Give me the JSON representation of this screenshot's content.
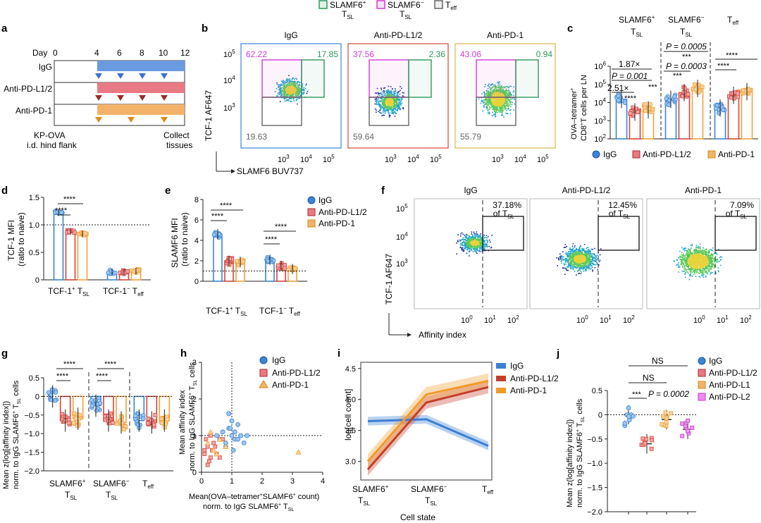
{
  "legend_top": {
    "items": [
      {
        "label": "SLAMF6",
        "sup": "+",
        "sub": "SL",
        "color": "#2e9a5e"
      },
      {
        "label": "SLAMF6",
        "sup": "−",
        "sub": "SL",
        "color": "#d23ad6"
      },
      {
        "label": "T",
        "sub": "eff",
        "color": "#666666"
      }
    ]
  },
  "panel_letters": {
    "a": "a",
    "b": "b",
    "c": "c",
    "d": "d",
    "e": "e",
    "f": "f",
    "g": "g",
    "h": "h",
    "i": "i",
    "j": "j"
  },
  "treatments": {
    "igg": "IgG",
    "pdl12": "Anti-PD-L1/2",
    "pd1": "Anti-PD-1",
    "pdl1": "Anti-PD-L1",
    "pdl2": "Anti-PD-L2"
  },
  "colors": {
    "igg": "#3a86d4",
    "pdl12": "#d4453a",
    "pd1": "#f0a23a",
    "pdl2": "#d94fd9",
    "green": "#2e9a5e",
    "magenta": "#d23ad6",
    "gray": "#666666"
  },
  "panel_a": {
    "day_label": "Day",
    "days": [
      "0",
      "4",
      "6",
      "8",
      "10",
      "12"
    ],
    "rows": [
      "IgG",
      "Anti-PD-L1/2",
      "Anti-PD-1"
    ],
    "start_text_1": "KP-OVA",
    "start_text_2": "i.d. hind flank",
    "end_text_1": "Collect",
    "end_text_2": "tissues"
  },
  "panel_b": {
    "ylabel": "TCF-1 AF647",
    "xlabel": "SLAMF6 BUV737",
    "plots": [
      {
        "title": "IgG",
        "magenta": "62.22",
        "green": "17.85",
        "gray": "19.63",
        "frame": "#3a86d4"
      },
      {
        "title": "Anti-PD-L1/2",
        "magenta": "37.56",
        "green": "2.36",
        "gray": "59.64",
        "frame": "#d4453a"
      },
      {
        "title": "Anti-PD-1",
        "magenta": "43.06",
        "green": "0.94",
        "gray": "55.79",
        "frame": "#d9b74a"
      }
    ],
    "y_ticks": [
      "10",
      "10",
      "10"
    ],
    "x_ticks": [
      "10",
      "10",
      "10"
    ]
  },
  "panel_c": {
    "ylabel_1": "OVA–tetramer",
    "ylabel_2": "CD8",
    "ylabel_3": "T cells per LN",
    "col_titles": [
      "SLAMF6",
      "SLAMF6",
      "T"
    ],
    "y_ticks": [
      "10",
      "10",
      "10",
      "10",
      "10"
    ],
    "annotations": {
      "fc1": "1.87×",
      "p1": "P = 0.001",
      "fc2": "2.51×",
      "p2": "P = 0.0005",
      "p3": "P = 0.0003",
      "stars3": "***",
      "stars4": "****"
    },
    "chart_data": {
      "type": "bar",
      "categories": [
        "SLAMF6+ TSL",
        "SLAMF6− TSL",
        "Teff"
      ],
      "series": [
        {
          "name": "IgG",
          "values": [
            15000,
            15000,
            5000
          ]
        },
        {
          "name": "Anti-PD-L1/2",
          "values": [
            3000,
            35000,
            25000
          ]
        },
        {
          "name": "Anti-PD-1",
          "values": [
            4000,
            60000,
            40000
          ]
        }
      ],
      "ylim": [
        100,
        1000000
      ],
      "yscale": "log"
    }
  },
  "panel_d": {
    "ylabel_1": "TCF-1 MFI",
    "ylabel_2": "(ratio to naive)",
    "x_labels": [
      "TCF-1",
      "TCF-1"
    ],
    "y_ticks": [
      "0",
      "0.5",
      "1.0",
      "1.5"
    ],
    "stars": "****",
    "chart_data": {
      "type": "bar",
      "categories": [
        "TCF-1+ TSL",
        "TCF-1− Teff"
      ],
      "series": [
        {
          "name": "IgG",
          "values": [
            1.22,
            0.14
          ]
        },
        {
          "name": "Anti-PD-L1/2",
          "values": [
            0.88,
            0.14
          ]
        },
        {
          "name": "Anti-PD-1",
          "values": [
            0.84,
            0.16
          ]
        }
      ],
      "ylim": [
        0,
        1.5
      ]
    }
  },
  "panel_e": {
    "ylabel_1": "SLAMF6 MFI",
    "ylabel_2": "(ratio to naive)",
    "x_labels": [
      "TCF-1",
      "TCF-1"
    ],
    "y_ticks": [
      "0",
      "2",
      "4",
      "6",
      "8"
    ],
    "stars": "****",
    "chart_data": {
      "type": "bar",
      "categories": [
        "TCF-1+ TSL",
        "TCF-1− Teff"
      ],
      "series": [
        {
          "name": "IgG",
          "values": [
            4.6,
            2.1
          ]
        },
        {
          "name": "Anti-PD-L1/2",
          "values": [
            2.0,
            1.5
          ]
        },
        {
          "name": "Anti-PD-1",
          "values": [
            1.9,
            1.2
          ]
        }
      ],
      "ylim": [
        0,
        8
      ]
    }
  },
  "panel_f": {
    "ylabel": "TCF-1 AF647",
    "xlabel": "Affinity index",
    "plots": [
      {
        "title": "IgG",
        "pct": "37.18%",
        "of": "of T"
      },
      {
        "title": "Anti-PD-L1/2",
        "pct": "12.45%",
        "of": "of T"
      },
      {
        "title": "Anti-PD-1",
        "pct": "7.09%",
        "of": "of T"
      }
    ],
    "y_ticks": [
      "10",
      "10",
      "10"
    ],
    "x_ticks": [
      "10",
      "10",
      "10"
    ]
  },
  "panel_g": {
    "ylabel_1": "Mean z(log[affinity index])",
    "ylabel_2": "norm. to IgG SLAMF6",
    "ylabel_3": "cells",
    "y_ticks": [
      "0.5",
      "0",
      "−0.5",
      "−1.0",
      "−1.5",
      "−2.0"
    ],
    "x_labels": [
      "SLAMF6",
      "SLAMF6",
      "T"
    ],
    "stars": "****",
    "chart_data": {
      "type": "bar",
      "categories": [
        "SLAMF6+ TSL",
        "SLAMF6− TSL",
        "Teff"
      ],
      "series": [
        {
          "name": "IgG",
          "values": [
            0.0,
            -0.25,
            -0.65
          ]
        },
        {
          "name": "Anti-PD-L1/2",
          "values": [
            -0.65,
            -0.65,
            -0.7
          ]
        },
        {
          "name": "Anti-PD-1",
          "values": [
            -0.6,
            -0.7,
            -0.65
          ]
        }
      ],
      "ylim": [
        -2.0,
        0.5
      ]
    }
  },
  "panel_h": {
    "ylabel_1": "Mean affinity index",
    "ylabel_2": "norm. to IgG SLAMF6",
    "ylabel_3": "cells",
    "xlabel_1": "Mean(OVA–tetramer",
    "xlabel_2": "SLAMF6",
    "xlabel_3": "count)",
    "xlabel_4": "norm. to IgG SLAMF6",
    "x_ticks": [
      "0",
      "1",
      "2",
      "3",
      "4"
    ],
    "y_ticks": [
      "0",
      "1",
      "2",
      "3"
    ],
    "chart_data": {
      "type": "scatter",
      "series": [
        {
          "name": "IgG",
          "x": [
            0.5,
            0.6,
            0.7,
            0.8,
            0.9,
            1.0,
            1.1,
            1.2,
            1.3,
            1.4,
            0.9,
            1.0,
            1.1,
            0.8,
            1.2,
            1.5,
            0.95,
            1.05
          ],
          "y": [
            1.0,
            0.9,
            1.1,
            0.8,
            1.2,
            1.0,
            0.9,
            1.3,
            1.0,
            0.8,
            1.6,
            1.4,
            1.1,
            0.7,
            0.9,
            1.0,
            1.2,
            0.6
          ]
        },
        {
          "name": "Anti-PD-L1/2",
          "x": [
            0.1,
            0.2,
            0.3,
            0.15,
            0.25,
            0.35,
            0.4,
            0.2,
            0.3,
            0.1,
            0.45,
            0.5,
            0.6,
            0.7
          ],
          "y": [
            0.5,
            0.7,
            0.4,
            0.9,
            0.3,
            0.6,
            0.8,
            0.2,
            1.0,
            0.6,
            0.7,
            0.5,
            0.4,
            0.9
          ]
        },
        {
          "name": "Anti-PD-1",
          "x": [
            0.2,
            0.4,
            0.6,
            0.8,
            0.3,
            0.5,
            3.2
          ],
          "y": [
            0.8,
            0.6,
            0.9,
            0.7,
            1.1,
            0.5,
            0.55
          ]
        }
      ],
      "xlim": [
        0,
        4
      ],
      "ylim": [
        0,
        3
      ]
    }
  },
  "panel_i": {
    "ylabel": "log[cell count]",
    "xlabel": "Cell state",
    "x_labels": [
      "SLAMF6",
      "SLAMF6",
      "T"
    ],
    "y_ticks": [
      "3.0",
      "3.5",
      "4.0",
      "4.5"
    ],
    "chart_data": {
      "type": "line",
      "categories": [
        "SLAMF6+ TSL",
        "SLAMF6− TSL",
        "Teff"
      ],
      "series": [
        {
          "name": "IgG",
          "values": [
            3.65,
            3.68,
            3.25
          ]
        },
        {
          "name": "Anti-PD-L1/2",
          "values": [
            2.87,
            3.95,
            4.2
          ]
        },
        {
          "name": "Anti-PD-1",
          "values": [
            3.0,
            4.08,
            4.3
          ]
        }
      ],
      "ylim": [
        2.7,
        4.6
      ]
    }
  },
  "panel_j": {
    "ylabel_1": "Mean z(log[affinity index])",
    "ylabel_2": "norm. to IgG SLAMF6",
    "ylabel_3": "cells",
    "y_ticks": [
      "0.5",
      "0",
      "−0.5",
      "−1.0",
      "−1.5",
      "−2.0"
    ],
    "ns1": "NS",
    "ns2": "NS",
    "stars": "***",
    "p": "P = 0.0002",
    "chart_data": {
      "type": "bar",
      "categories": [
        "IgG",
        "Anti-PD-L1/2",
        "Anti-PD-L1",
        "Anti-PD-L2"
      ],
      "values": [
        0.0,
        -0.6,
        -0.1,
        -0.3
      ],
      "ylim": [
        -2.0,
        0.5
      ]
    }
  },
  "sub_sl": "SL",
  "sub_eff": "eff",
  "sup_plus": "+",
  "sup_minus": "−"
}
